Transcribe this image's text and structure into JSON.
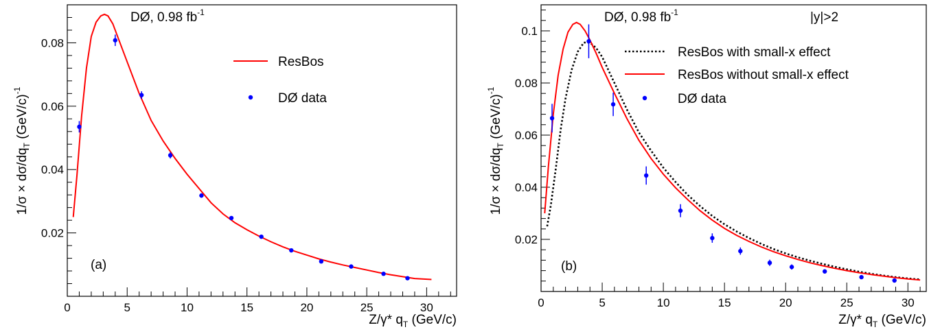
{
  "colors": {
    "resbos": "#ff0000",
    "data": "#0000ff",
    "smallx": "#000000",
    "axis": "#000000"
  },
  "chart_data": [
    {
      "type": "line",
      "panel_label": "(a)",
      "experiment": "DØ, 0.98 fb",
      "experiment_sup": "-1",
      "xlabel": "Z/γ* q",
      "xlabel_sub": "T",
      "xlabel_unit": " (GeV/c)",
      "ylabel": "1/σ × dσ/dq",
      "ylabel_sub": "T",
      "ylabel_unit": " (GeV/c)",
      "ylabel_sup": "-1",
      "xlim": [
        0,
        32.5
      ],
      "ylim": [
        0,
        0.092
      ],
      "xticks": [
        0,
        5,
        10,
        15,
        20,
        25,
        30
      ],
      "xticklabels": [
        "0",
        "5",
        "10",
        "15",
        "20",
        "25",
        "30"
      ],
      "yticks": [
        0.02,
        0.04,
        0.06,
        0.08
      ],
      "yticklabels": [
        "0.02",
        "0.04",
        "0.06",
        "0.08"
      ],
      "legend": [
        {
          "label": "ResBos",
          "kind": "line"
        },
        {
          "label": "DØ data",
          "kind": "point"
        }
      ],
      "series": [
        {
          "name": "ResBos",
          "kind": "line",
          "x": [
            0.5,
            0.8,
            1.2,
            1.6,
            2.0,
            2.4,
            2.8,
            3.1,
            3.4,
            3.8,
            4.3,
            5.0,
            6.0,
            7.0,
            8.0,
            9.0,
            10.0,
            11.0,
            12.0,
            13.0,
            14.0,
            15.0,
            16.0,
            17.0,
            18.0,
            19.0,
            20.0,
            21.0,
            22.0,
            23.0,
            24.0,
            25.0,
            26.0,
            27.0,
            28.0,
            29.0,
            30.4
          ],
          "y": [
            0.025,
            0.038,
            0.057,
            0.072,
            0.082,
            0.0865,
            0.0885,
            0.089,
            0.0885,
            0.086,
            0.081,
            0.074,
            0.064,
            0.0555,
            0.049,
            0.0435,
            0.0385,
            0.034,
            0.0295,
            0.026,
            0.0232,
            0.021,
            0.019,
            0.0172,
            0.0156,
            0.0142,
            0.013,
            0.0118,
            0.0108,
            0.0099,
            0.0091,
            0.0083,
            0.0075,
            0.0068,
            0.0062,
            0.0056,
            0.0053
          ]
        },
        {
          "name": "DØ data",
          "kind": "points",
          "x": [
            1.0,
            4.0,
            6.2,
            8.6,
            11.2,
            13.7,
            16.2,
            18.7,
            21.2,
            23.7,
            26.4,
            28.4
          ],
          "y": [
            0.0535,
            0.0808,
            0.0635,
            0.0445,
            0.0318,
            0.0247,
            0.0188,
            0.0145,
            0.011,
            0.0094,
            0.0071,
            0.0057
          ],
          "err": [
            0.0018,
            0.0018,
            0.0012,
            0.001,
            0.0007,
            0.0006,
            0.0005,
            0.0004,
            0.0004,
            0.0003,
            0.0003,
            0.0003
          ]
        }
      ]
    },
    {
      "type": "line",
      "panel_label": "(b)",
      "experiment": "DØ, 0.98 fb",
      "experiment_sup": "-1",
      "cut": "|y|>2",
      "xlabel": "Z/γ* q",
      "xlabel_sub": "T",
      "xlabel_unit": " (GeV/c)",
      "ylabel": "1/σ × dσ/dq",
      "ylabel_sub": "T",
      "ylabel_unit": " (GeV/c)",
      "ylabel_sup": "-1",
      "xlim": [
        0,
        31.5
      ],
      "ylim": [
        0,
        0.11
      ],
      "xticks": [
        0,
        5,
        10,
        15,
        20,
        25,
        30
      ],
      "xticklabels": [
        "0",
        "5",
        "10",
        "15",
        "20",
        "25",
        "30"
      ],
      "yticks": [
        0.02,
        0.04,
        0.06,
        0.08,
        0.1
      ],
      "yticklabels": [
        "0.02",
        "0.04",
        "0.06",
        "0.08",
        "0.1"
      ],
      "legend": [
        {
          "label": "ResBos with small-x effect",
          "kind": "dotted"
        },
        {
          "label": "ResBos without small-x effect",
          "kind": "line"
        },
        {
          "label": "DØ data",
          "kind": "point"
        }
      ],
      "series": [
        {
          "name": "ResBos with small-x effect",
          "kind": "dotted",
          "x": [
            0.5,
            0.8,
            1.2,
            1.6,
            2.0,
            2.5,
            3.0,
            3.5,
            4.0,
            4.5,
            5.0,
            6.0,
            7.0,
            8.0,
            9.0,
            10.0,
            11.0,
            12.0,
            13.0,
            14.0,
            15.0,
            16.0,
            17.0,
            18.0,
            19.0,
            20.0,
            21.0,
            22.0,
            23.0,
            24.0,
            25.0,
            26.0,
            27.0,
            28.0,
            29.0,
            30.0,
            31.0
          ],
          "y": [
            0.025,
            0.033,
            0.047,
            0.062,
            0.074,
            0.085,
            0.092,
            0.0955,
            0.0955,
            0.0935,
            0.09,
            0.08,
            0.07,
            0.061,
            0.054,
            0.0475,
            0.042,
            0.037,
            0.0328,
            0.029,
            0.0258,
            0.023,
            0.0205,
            0.0183,
            0.0163,
            0.0146,
            0.0131,
            0.0118,
            0.0106,
            0.0095,
            0.0085,
            0.0076,
            0.0068,
            0.0061,
            0.0055,
            0.005,
            0.0046
          ]
        },
        {
          "name": "ResBos without small-x effect",
          "kind": "line",
          "x": [
            0.3,
            0.6,
            1.0,
            1.4,
            1.8,
            2.2,
            2.6,
            2.9,
            3.2,
            3.6,
            4.0,
            4.5,
            5.0,
            6.0,
            7.0,
            8.0,
            9.0,
            10.0,
            11.0,
            12.0,
            13.0,
            14.0,
            15.0,
            16.0,
            17.0,
            18.0,
            19.0,
            20.0,
            21.0,
            22.0,
            23.0,
            24.0,
            25.0,
            26.0,
            27.0,
            28.0,
            29.0,
            30.0,
            31.0
          ],
          "y": [
            0.03,
            0.048,
            0.068,
            0.083,
            0.093,
            0.0995,
            0.1025,
            0.1032,
            0.1025,
            0.1,
            0.0965,
            0.0915,
            0.086,
            0.076,
            0.0665,
            0.058,
            0.051,
            0.045,
            0.0398,
            0.0352,
            0.031,
            0.0274,
            0.0242,
            0.0215,
            0.0192,
            0.0171,
            0.0153,
            0.0137,
            0.0123,
            0.011,
            0.0099,
            0.0089,
            0.008,
            0.0072,
            0.0065,
            0.0059,
            0.0053,
            0.0048,
            0.0044
          ]
        },
        {
          "name": "DØ data",
          "kind": "points",
          "x": [
            0.9,
            3.9,
            5.9,
            8.6,
            11.4,
            14.0,
            16.3,
            18.7,
            20.5,
            23.2,
            26.2,
            28.9
          ],
          "y": [
            0.0665,
            0.096,
            0.0718,
            0.0445,
            0.031,
            0.0205,
            0.0155,
            0.011,
            0.0094,
            0.0077,
            0.0055,
            0.0042
          ],
          "err": [
            0.0055,
            0.0065,
            0.0045,
            0.0035,
            0.0025,
            0.0018,
            0.0014,
            0.0012,
            0.001,
            0.0008,
            0.0006,
            0.0005
          ]
        }
      ]
    }
  ]
}
